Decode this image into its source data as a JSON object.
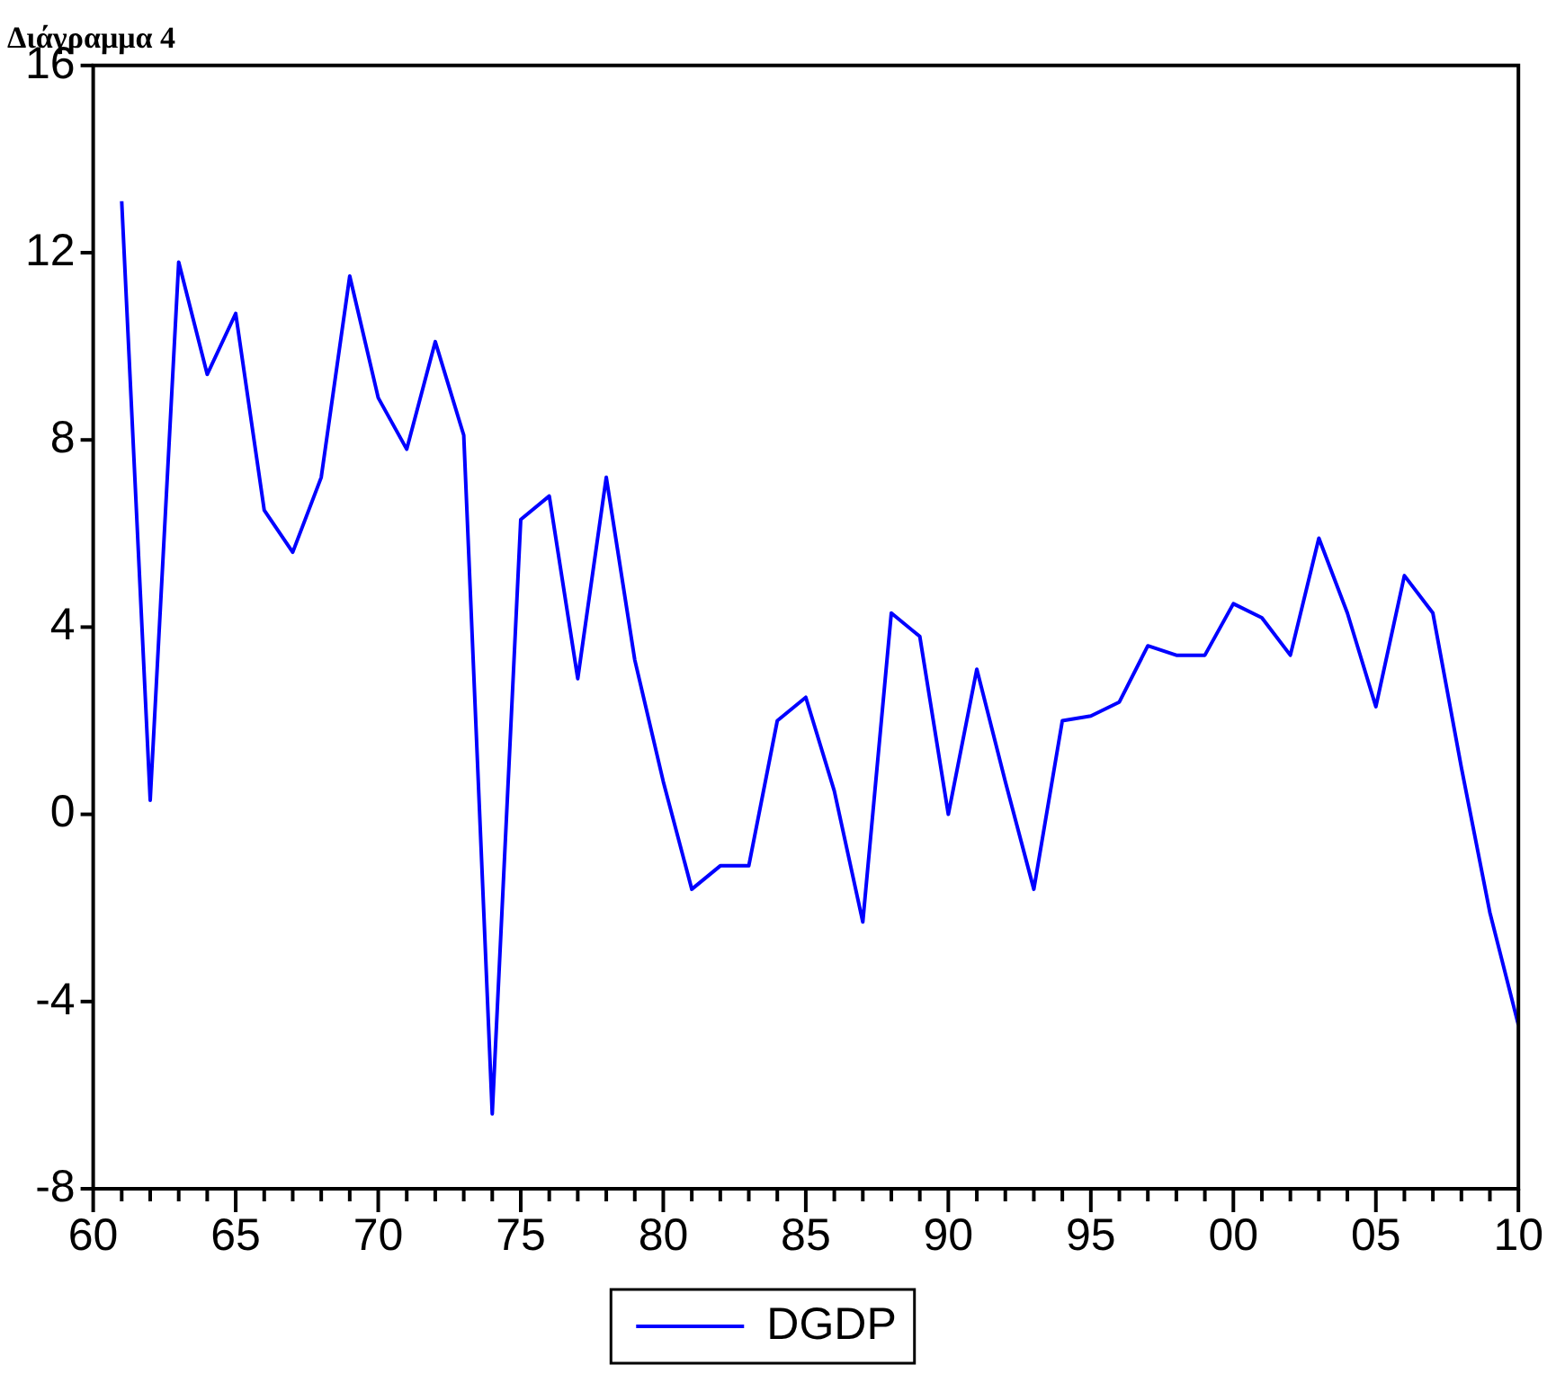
{
  "chart_data": {
    "type": "line",
    "title": "Διάγραμμα 4",
    "x": [
      1961,
      1962,
      1963,
      1964,
      1965,
      1966,
      1967,
      1968,
      1969,
      1970,
      1971,
      1972,
      1973,
      1974,
      1975,
      1976,
      1977,
      1978,
      1979,
      1980,
      1981,
      1982,
      1983,
      1984,
      1985,
      1986,
      1987,
      1988,
      1989,
      1990,
      1991,
      1992,
      1993,
      1994,
      1995,
      1996,
      1997,
      1998,
      1999,
      2000,
      2001,
      2002,
      2003,
      2004,
      2005,
      2006,
      2007,
      2008,
      2009,
      2010
    ],
    "series": [
      {
        "name": "DGDP",
        "color": "#0000ff",
        "values": [
          13.1,
          0.3,
          11.8,
          9.4,
          10.7,
          6.5,
          5.6,
          7.2,
          11.5,
          8.9,
          7.8,
          10.1,
          8.1,
          -6.4,
          6.3,
          6.8,
          2.9,
          7.2,
          3.3,
          0.7,
          -1.6,
          -1.1,
          -1.1,
          2.0,
          2.5,
          0.5,
          -2.3,
          4.3,
          3.8,
          0.0,
          3.1,
          0.7,
          -1.6,
          2.0,
          2.1,
          2.4,
          3.6,
          3.4,
          3.4,
          4.5,
          4.2,
          3.4,
          5.9,
          4.3,
          2.3,
          5.1,
          4.3,
          1.0,
          -2.1,
          -4.5
        ]
      }
    ],
    "xlim": [
      1960,
      2010
    ],
    "xticks": [
      {
        "value": 1960,
        "label": "60"
      },
      {
        "value": 1961,
        "label": null
      },
      {
        "value": 1962,
        "label": null
      },
      {
        "value": 1963,
        "label": null
      },
      {
        "value": 1964,
        "label": null
      },
      {
        "value": 1965,
        "label": "65"
      },
      {
        "value": 1966,
        "label": null
      },
      {
        "value": 1967,
        "label": null
      },
      {
        "value": 1968,
        "label": null
      },
      {
        "value": 1969,
        "label": null
      },
      {
        "value": 1970,
        "label": "70"
      },
      {
        "value": 1971,
        "label": null
      },
      {
        "value": 1972,
        "label": null
      },
      {
        "value": 1973,
        "label": null
      },
      {
        "value": 1974,
        "label": null
      },
      {
        "value": 1975,
        "label": "75"
      },
      {
        "value": 1976,
        "label": null
      },
      {
        "value": 1977,
        "label": null
      },
      {
        "value": 1978,
        "label": null
      },
      {
        "value": 1979,
        "label": null
      },
      {
        "value": 1980,
        "label": "80"
      },
      {
        "value": 1981,
        "label": null
      },
      {
        "value": 1982,
        "label": null
      },
      {
        "value": 1983,
        "label": null
      },
      {
        "value": 1984,
        "label": null
      },
      {
        "value": 1985,
        "label": "85"
      },
      {
        "value": 1986,
        "label": null
      },
      {
        "value": 1987,
        "label": null
      },
      {
        "value": 1988,
        "label": null
      },
      {
        "value": 1989,
        "label": null
      },
      {
        "value": 1990,
        "label": "90"
      },
      {
        "value": 1991,
        "label": null
      },
      {
        "value": 1992,
        "label": null
      },
      {
        "value": 1993,
        "label": null
      },
      {
        "value": 1994,
        "label": null
      },
      {
        "value": 1995,
        "label": "95"
      },
      {
        "value": 1996,
        "label": null
      },
      {
        "value": 1997,
        "label": null
      },
      {
        "value": 1998,
        "label": null
      },
      {
        "value": 1999,
        "label": null
      },
      {
        "value": 2000,
        "label": "00"
      },
      {
        "value": 2001,
        "label": null
      },
      {
        "value": 2002,
        "label": null
      },
      {
        "value": 2003,
        "label": null
      },
      {
        "value": 2004,
        "label": null
      },
      {
        "value": 2005,
        "label": "05"
      },
      {
        "value": 2006,
        "label": null
      },
      {
        "value": 2007,
        "label": null
      },
      {
        "value": 2008,
        "label": null
      },
      {
        "value": 2009,
        "label": null
      },
      {
        "value": 2010,
        "label": "10"
      }
    ],
    "ylim": [
      -8,
      16
    ],
    "yticks": [
      -8,
      -4,
      0,
      4,
      8,
      12,
      16
    ],
    "grid": false,
    "legend": "bottom",
    "marker": "none",
    "line_style": "solid"
  }
}
